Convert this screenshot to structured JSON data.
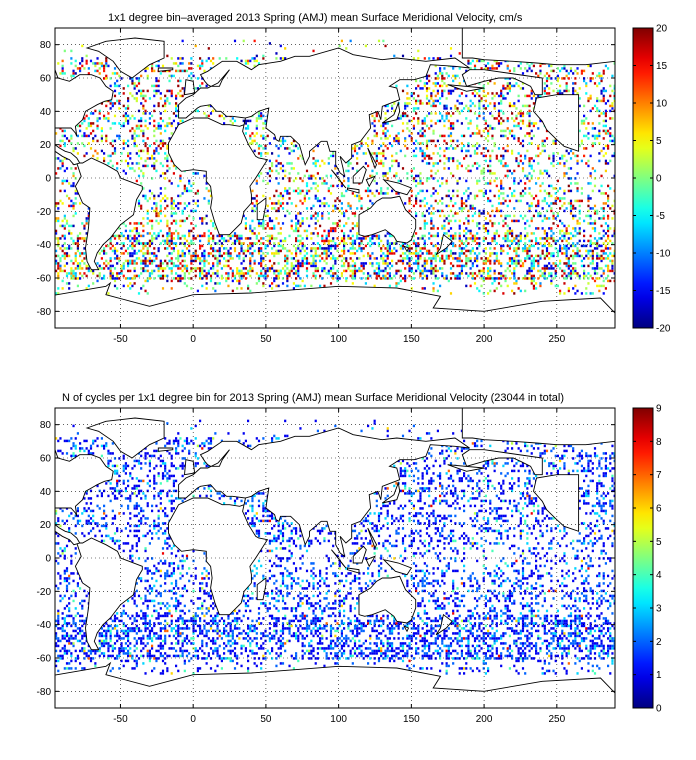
{
  "chart_data": [
    {
      "type": "heatmap",
      "title": "1x1 degree bin–averaged 2013 Spring (AMJ) mean Surface Meridional Velocity, cm/s",
      "xticks": [
        -50,
        0,
        50,
        100,
        150,
        200,
        250
      ],
      "yticks": [
        80,
        60,
        40,
        20,
        0,
        -20,
        -40,
        -60,
        -80
      ],
      "xlim": [
        -95,
        290
      ],
      "ylim": [
        -90,
        90
      ],
      "grid": "dotted",
      "colorbar": {
        "colormap": "jet",
        "range": [
          -20,
          20
        ],
        "ticks": [
          20,
          15,
          10,
          5,
          0,
          -5,
          -10,
          -15,
          -20
        ]
      }
    },
    {
      "type": "heatmap",
      "title": "N of cycles per 1x1 degree bin for 2013 Spring (AMJ) mean Surface Meridional Velocity (23044 in total)",
      "xticks": [
        -50,
        0,
        50,
        100,
        150,
        200,
        250
      ],
      "yticks": [
        80,
        60,
        40,
        20,
        0,
        -20,
        -40,
        -60,
        -80
      ],
      "xlim": [
        -95,
        290
      ],
      "ylim": [
        -90,
        90
      ],
      "grid": "dotted",
      "colorbar": {
        "colormap": "jet",
        "range": [
          0,
          9
        ],
        "ticks": [
          9,
          8,
          7,
          6,
          5,
          4,
          3,
          2,
          1,
          0
        ]
      }
    }
  ]
}
